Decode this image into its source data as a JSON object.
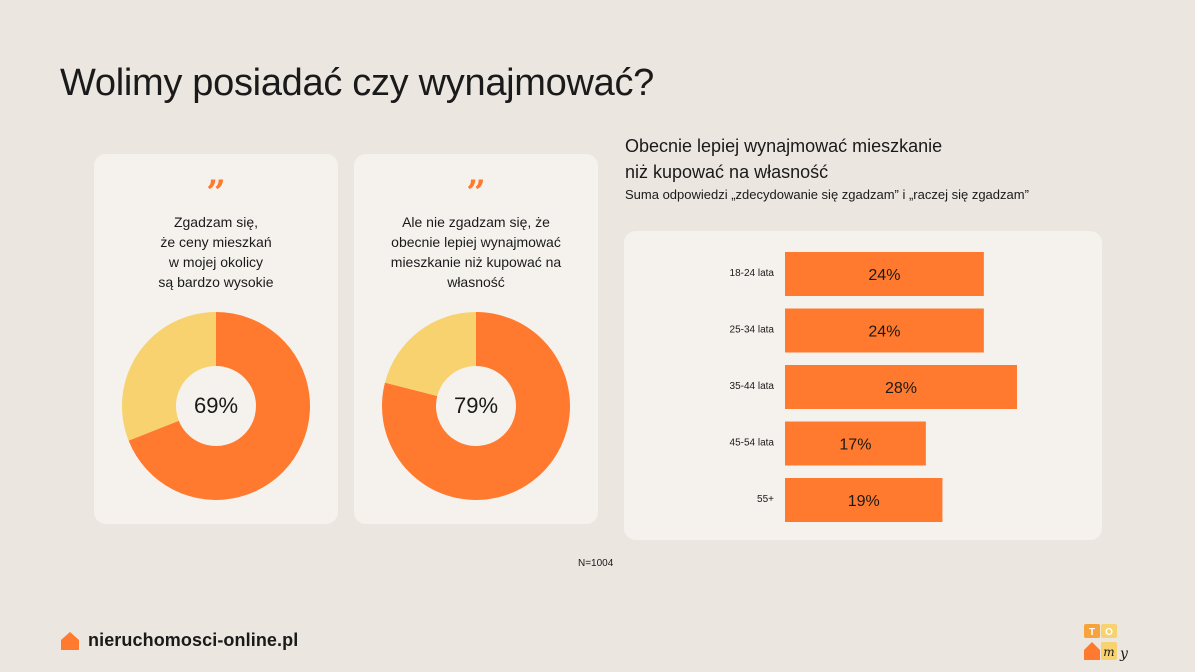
{
  "title": "Wolimy posiadać czy wynajmować?",
  "colors": {
    "accent": "#ff7a2e",
    "secondary": "#f7d26e",
    "background": "#ebe6e0",
    "card": "#f5f2ee"
  },
  "cards": [
    {
      "quote_icon": "quote-mark-icon",
      "text": "Zgadzam się,\nże ceny mieszkań\nw mojej okolicy\nsą bardzo wysokie",
      "value": 69,
      "value_label": "69%"
    },
    {
      "quote_icon": "quote-mark-icon",
      "text": "Ale nie zgadzam się, że\nobecnie lepiej wynajmować\nmieszkanie niż kupować na\nwłasność",
      "value": 79,
      "value_label": "79%"
    }
  ],
  "bar_section": {
    "title": "Obecnie lepiej wynajmować mieszkanie\nniż kupować na własność",
    "subtitle": "Suma odpowiedzi „zdecydowanie się zgadzam” i „raczej się zgadzam”"
  },
  "chart_data": [
    {
      "type": "pie",
      "title": "",
      "values": [
        69,
        31
      ],
      "labels": [
        "69%",
        ""
      ]
    },
    {
      "type": "pie",
      "title": "",
      "values": [
        79,
        21
      ],
      "labels": [
        "79%",
        ""
      ]
    },
    {
      "type": "bar",
      "orientation": "horizontal",
      "categories": [
        "18-24 lata",
        "25-34 lata",
        "35-44 lata",
        "45-54 lata",
        "55+"
      ],
      "values": [
        24,
        24,
        28,
        17,
        19
      ],
      "labels": [
        "24%",
        "24%",
        "28%",
        "17%",
        "19%"
      ],
      "xlim": [
        0,
        28
      ]
    }
  ],
  "note": "N=1004",
  "footer": {
    "brand": "nieruchomosci-online.pl",
    "brand_icon": "house-icon",
    "logo_icon": "tomy-logo-icon",
    "logo_text": [
      "T",
      "O",
      "m",
      "y"
    ]
  }
}
